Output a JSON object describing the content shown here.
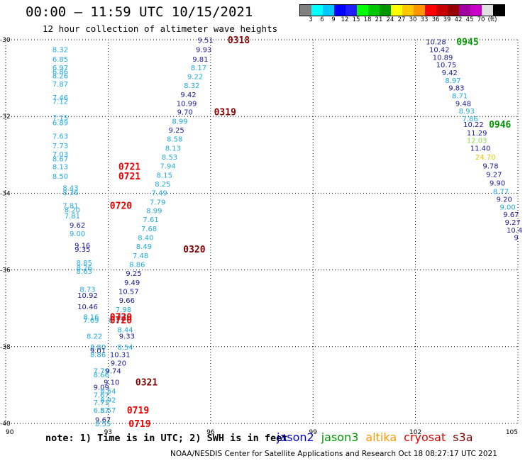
{
  "title": "00:00 — 11:59 UTC 10/15/2021",
  "subtitle": "12 hour collection of altimeter wave heights",
  "colorbar": {
    "colors": [
      "#808080",
      "#00ffff",
      "#00c8ff",
      "#0000ff",
      "#1e1eff",
      "#00ff00",
      "#00c800",
      "#009600",
      "#ffff00",
      "#ffc800",
      "#ff9600",
      "#ff0000",
      "#c80000",
      "#960000",
      "#a000a0",
      "#c800c8",
      "#e0e0e0",
      "#000000"
    ],
    "labels": [
      "3",
      "6",
      "9",
      "12",
      "15",
      "18",
      "21",
      "24",
      "27",
      "30",
      "33",
      "36",
      "39",
      "42",
      "45",
      "70",
      "(ft)"
    ]
  },
  "note": "note: 1) Time is in UTC; 2) SWH is in feet",
  "legend": [
    {
      "name": "jason2",
      "color": "#0000cc"
    },
    {
      "name": "jason3",
      "color": "#009600"
    },
    {
      "name": "altika",
      "color": "#ff9600"
    },
    {
      "name": "cryosat",
      "color": "#e00000"
    },
    {
      "name": "s3a",
      "color": "#800000"
    }
  ],
  "credit": "NOAA/NESDIS Center for Satellite Applications and Research    Oct 18 08:27:17 UTC 2021",
  "chart_data": {
    "type": "scatter",
    "xlim": [
      90,
      105
    ],
    "ylim": [
      -40,
      -30
    ],
    "xticks": [
      "90",
      "93",
      "96",
      "99",
      "102",
      "105"
    ],
    "yticks": [
      "-30",
      "-32",
      "-34",
      "-36",
      "-38",
      "-40"
    ],
    "grid": true,
    "points": [
      {
        "x": 91.6,
        "y": -30.25,
        "v": "8.32",
        "c": "#22aadd"
      },
      {
        "x": 91.6,
        "y": -30.5,
        "v": "6.85",
        "c": "#22aadd"
      },
      {
        "x": 91.6,
        "y": -30.72,
        "v": "6.97",
        "c": "#22aadd"
      },
      {
        "x": 91.6,
        "y": -30.82,
        "v": "6.86",
        "c": "#22aadd"
      },
      {
        "x": 91.6,
        "y": -30.93,
        "v": "8.26",
        "c": "#22aadd"
      },
      {
        "x": 91.6,
        "y": -31.15,
        "v": "7.87",
        "c": "#22aadd"
      },
      {
        "x": 91.6,
        "y": -31.5,
        "v": "7.46",
        "c": "#22aadd"
      },
      {
        "x": 91.6,
        "y": -31.6,
        "v": "7.12",
        "c": "#22aadd"
      },
      {
        "x": 91.6,
        "y": -32.02,
        "v": "7.15",
        "c": "#22aadd"
      },
      {
        "x": 91.6,
        "y": -32.15,
        "v": "6.89",
        "c": "#22aadd"
      },
      {
        "x": 91.6,
        "y": -32.5,
        "v": "7.63",
        "c": "#22aadd"
      },
      {
        "x": 91.6,
        "y": -32.75,
        "v": "7.73",
        "c": "#22aadd"
      },
      {
        "x": 91.6,
        "y": -32.98,
        "v": "7.03",
        "c": "#22aadd"
      },
      {
        "x": 91.6,
        "y": -33.1,
        "v": "8.67",
        "c": "#22aadd"
      },
      {
        "x": 91.6,
        "y": -33.3,
        "v": "8.13",
        "c": "#22aadd"
      },
      {
        "x": 91.6,
        "y": -33.55,
        "v": "8.50",
        "c": "#22aadd"
      },
      {
        "x": 91.9,
        "y": -33.85,
        "v": "8.43",
        "c": "#22aadd"
      },
      {
        "x": 91.9,
        "y": -33.97,
        "v": "8.36",
        "c": "#22aadd"
      },
      {
        "x": 91.9,
        "y": -34.32,
        "v": "7.81",
        "c": "#22aadd"
      },
      {
        "x": 91.95,
        "y": -34.43,
        "v": "8.20",
        "c": "#22aadd"
      },
      {
        "x": 91.95,
        "y": -34.58,
        "v": "7.81",
        "c": "#22aadd"
      },
      {
        "x": 92.1,
        "y": -34.82,
        "v": "9.62",
        "c": "#1a1a9a"
      },
      {
        "x": 92.1,
        "y": -35.05,
        "v": "9.00",
        "c": "#22aadd"
      },
      {
        "x": 92.25,
        "y": -35.35,
        "v": "9.16",
        "c": "#1a1a9a"
      },
      {
        "x": 92.25,
        "y": -35.45,
        "v": "9.35",
        "c": "#1a1a9a"
      },
      {
        "x": 92.3,
        "y": -35.8,
        "v": "8.85",
        "c": "#22aadd"
      },
      {
        "x": 92.3,
        "y": -35.93,
        "v": "8.26",
        "c": "#22aadd"
      },
      {
        "x": 92.3,
        "y": -36.03,
        "v": "8.63",
        "c": "#22aadd"
      },
      {
        "x": 92.4,
        "y": -36.5,
        "v": "8.73",
        "c": "#22aadd"
      },
      {
        "x": 92.4,
        "y": -36.65,
        "v": "10.92",
        "c": "#1a1a9a"
      },
      {
        "x": 92.4,
        "y": -36.95,
        "v": "10.46",
        "c": "#1a1a9a"
      },
      {
        "x": 92.5,
        "y": -37.22,
        "v": "8.16",
        "c": "#22aadd"
      },
      {
        "x": 92.5,
        "y": -37.3,
        "v": "7.69",
        "c": "#22aadd"
      },
      {
        "x": 92.6,
        "y": -37.72,
        "v": "8.22",
        "c": "#22aadd"
      },
      {
        "x": 92.7,
        "y": -38.0,
        "v": "8.80",
        "c": "#22aadd"
      },
      {
        "x": 92.7,
        "y": -38.1,
        "v": "9.01",
        "c": "#1a1a9a"
      },
      {
        "x": 92.7,
        "y": -38.2,
        "v": "8.86",
        "c": "#22aadd"
      },
      {
        "x": 92.8,
        "y": -38.62,
        "v": "7.79",
        "c": "#22aadd"
      },
      {
        "x": 92.8,
        "y": -38.72,
        "v": "8.66",
        "c": "#22aadd"
      },
      {
        "x": 92.8,
        "y": -39.05,
        "v": "9.09",
        "c": "#1a1a9a"
      },
      {
        "x": 92.8,
        "y": -39.25,
        "v": "7.67",
        "c": "#22aadd"
      },
      {
        "x": 92.8,
        "y": -39.45,
        "v": "7.71",
        "c": "#22aadd"
      },
      {
        "x": 92.8,
        "y": -39.65,
        "v": "6.57",
        "c": "#22aadd"
      },
      {
        "x": 92.85,
        "y": -39.9,
        "v": "9.67",
        "c": "#1a1a9a"
      },
      {
        "x": 92.85,
        "y": -40.0,
        "v": "8.55",
        "c": "#22aadd"
      },
      {
        "x": 93.3,
        "y": -37.22,
        "v": "8.21",
        "c": "#22aadd"
      },
      {
        "x": 93.25,
        "y": -37.3,
        "v": "8.21",
        "c": "#22aadd"
      },
      {
        "x": 93.5,
        "y": -37.55,
        "v": "8.44",
        "c": "#22aadd"
      },
      {
        "x": 93.55,
        "y": -37.72,
        "v": "9.33",
        "c": "#1a1a9a"
      },
      {
        "x": 93.5,
        "y": -38.0,
        "v": "8.54",
        "c": "#22aadd"
      },
      {
        "x": 93.35,
        "y": -38.2,
        "v": "10.31",
        "c": "#1a1a9a"
      },
      {
        "x": 93.3,
        "y": -38.42,
        "v": "9.20",
        "c": "#1a1a9a"
      },
      {
        "x": 93.15,
        "y": -38.62,
        "v": "9.74",
        "c": "#1a1a9a"
      },
      {
        "x": 93.1,
        "y": -38.92,
        "v": "9.10",
        "c": "#1a1a9a"
      },
      {
        "x": 93.0,
        "y": -39.15,
        "v": "8.54",
        "c": "#22aadd"
      },
      {
        "x": 93.0,
        "y": -39.38,
        "v": "8.92",
        "c": "#22aadd"
      },
      {
        "x": 93.0,
        "y": -39.65,
        "v": "8.57",
        "c": "#22aadd"
      },
      {
        "x": 95.85,
        "y": -30.0,
        "v": "9.51",
        "c": "#1a1a9a"
      },
      {
        "x": 95.8,
        "y": -30.25,
        "v": "9.93",
        "c": "#1a1a9a"
      },
      {
        "x": 95.7,
        "y": -30.5,
        "v": "9.81",
        "c": "#1a1a9a"
      },
      {
        "x": 95.65,
        "y": -30.72,
        "v": "8.17",
        "c": "#22aadd"
      },
      {
        "x": 95.55,
        "y": -30.95,
        "v": "9.22",
        "c": "#22aadd"
      },
      {
        "x": 95.45,
        "y": -31.18,
        "v": "8.32",
        "c": "#22aadd"
      },
      {
        "x": 95.35,
        "y": -31.42,
        "v": "9.42",
        "c": "#1a1a9a"
      },
      {
        "x": 95.3,
        "y": -31.65,
        "v": "10.99",
        "c": "#1a1a9a"
      },
      {
        "x": 95.25,
        "y": -31.88,
        "v": "9.70",
        "c": "#1a1a9a"
      },
      {
        "x": 95.1,
        "y": -32.12,
        "v": "8.99",
        "c": "#22aadd"
      },
      {
        "x": 95.0,
        "y": -32.35,
        "v": "9.25",
        "c": "#1a1a9a"
      },
      {
        "x": 94.95,
        "y": -32.58,
        "v": "8.58",
        "c": "#22aadd"
      },
      {
        "x": 94.9,
        "y": -32.82,
        "v": "8.13",
        "c": "#22aadd"
      },
      {
        "x": 94.8,
        "y": -33.05,
        "v": "8.53",
        "c": "#22aadd"
      },
      {
        "x": 94.75,
        "y": -33.28,
        "v": "7.94",
        "c": "#22aadd"
      },
      {
        "x": 94.65,
        "y": -33.52,
        "v": "8.15",
        "c": "#22aadd"
      },
      {
        "x": 94.6,
        "y": -33.75,
        "v": "8.25",
        "c": "#22aadd"
      },
      {
        "x": 94.5,
        "y": -33.98,
        "v": "7.49",
        "c": "#22aadd"
      },
      {
        "x": 94.45,
        "y": -34.22,
        "v": "7.79",
        "c": "#22aadd"
      },
      {
        "x": 94.35,
        "y": -34.45,
        "v": "8.99",
        "c": "#22aadd"
      },
      {
        "x": 94.25,
        "y": -34.68,
        "v": "7.61",
        "c": "#22aadd"
      },
      {
        "x": 94.2,
        "y": -34.92,
        "v": "7.68",
        "c": "#22aadd"
      },
      {
        "x": 94.1,
        "y": -35.15,
        "v": "8.40",
        "c": "#22aadd"
      },
      {
        "x": 94.05,
        "y": -35.38,
        "v": "8.49",
        "c": "#22aadd"
      },
      {
        "x": 93.95,
        "y": -35.62,
        "v": "7.48",
        "c": "#22aadd"
      },
      {
        "x": 93.85,
        "y": -35.85,
        "v": "8.86",
        "c": "#22aadd"
      },
      {
        "x": 93.75,
        "y": -36.08,
        "v": "9.25",
        "c": "#1a1a9a"
      },
      {
        "x": 93.7,
        "y": -36.32,
        "v": "9.49",
        "c": "#1a1a9a"
      },
      {
        "x": 93.6,
        "y": -36.55,
        "v": "10.57",
        "c": "#1a1a9a"
      },
      {
        "x": 93.55,
        "y": -36.78,
        "v": "9.66",
        "c": "#1a1a9a"
      },
      {
        "x": 93.45,
        "y": -37.02,
        "v": "7.98",
        "c": "#22aadd"
      },
      {
        "x": 102.6,
        "y": -30.05,
        "v": "10.28",
        "c": "#1a1a9a"
      },
      {
        "x": 102.7,
        "y": -30.25,
        "v": "10.42",
        "c": "#1a1a9a"
      },
      {
        "x": 102.8,
        "y": -30.45,
        "v": "10.89",
        "c": "#1a1a9a"
      },
      {
        "x": 102.9,
        "y": -30.65,
        "v": "10.75",
        "c": "#1a1a9a"
      },
      {
        "x": 103.0,
        "y": -30.85,
        "v": "9.42",
        "c": "#1a1a9a"
      },
      {
        "x": 103.1,
        "y": -31.05,
        "v": "8.97",
        "c": "#22aadd"
      },
      {
        "x": 103.2,
        "y": -31.25,
        "v": "9.83",
        "c": "#1a1a9a"
      },
      {
        "x": 103.3,
        "y": -31.45,
        "v": "8.71",
        "c": "#22aadd"
      },
      {
        "x": 103.4,
        "y": -31.65,
        "v": "9.48",
        "c": "#1a1a9a"
      },
      {
        "x": 103.5,
        "y": -31.85,
        "v": "8.93",
        "c": "#22aadd"
      },
      {
        "x": 103.6,
        "y": -32.05,
        "v": "7.86",
        "c": "#22aadd"
      },
      {
        "x": 103.7,
        "y": -32.2,
        "v": "10.22",
        "c": "#1a1a9a"
      },
      {
        "x": 103.8,
        "y": -32.42,
        "v": "11.29",
        "c": "#1a1a9a"
      },
      {
        "x": 103.8,
        "y": -32.62,
        "v": "12.03",
        "c": "#88dd44"
      },
      {
        "x": 103.9,
        "y": -32.82,
        "v": "11.40",
        "c": "#1a1a9a"
      },
      {
        "x": 104.05,
        "y": -33.05,
        "v": "24.70",
        "c": "#e8c800"
      },
      {
        "x": 104.2,
        "y": -33.28,
        "v": "9.78",
        "c": "#1a1a9a"
      },
      {
        "x": 104.3,
        "y": -33.5,
        "v": "9.27",
        "c": "#1a1a9a"
      },
      {
        "x": 104.4,
        "y": -33.72,
        "v": "9.90",
        "c": "#1a1a9a"
      },
      {
        "x": 104.5,
        "y": -33.95,
        "v": "8.77",
        "c": "#22aadd"
      },
      {
        "x": 104.6,
        "y": -34.15,
        "v": "9.20",
        "c": "#1a1a9a"
      },
      {
        "x": 104.7,
        "y": -34.35,
        "v": "9.00",
        "c": "#22aadd"
      },
      {
        "x": 104.8,
        "y": -34.55,
        "v": "9.67",
        "c": "#1a1a9a"
      },
      {
        "x": 104.85,
        "y": -34.75,
        "v": "9.27",
        "c": "#1a1a9a"
      },
      {
        "x": 104.9,
        "y": -34.95,
        "v": "10.4",
        "c": "#1a1a9a"
      },
      {
        "x": 104.95,
        "y": -35.15,
        "v": "9",
        "c": "#1a1a9a"
      }
    ],
    "time_labels": [
      {
        "x": 96.5,
        "y": -30.0,
        "v": "0318",
        "c": "#800000"
      },
      {
        "x": 96.1,
        "y": -31.88,
        "v": "0319",
        "c": "#800000"
      },
      {
        "x": 93.3,
        "y": -33.3,
        "v": "0721",
        "c": "#ee0000"
      },
      {
        "x": 93.3,
        "y": -33.55,
        "v": "0721",
        "c": "#ee0000"
      },
      {
        "x": 93.05,
        "y": -34.32,
        "v": "0720",
        "c": "#ee0000"
      },
      {
        "x": 95.2,
        "y": -35.45,
        "v": "0320",
        "c": "#800000"
      },
      {
        "x": 93.05,
        "y": -37.22,
        "v": "0720",
        "c": "#ee0000"
      },
      {
        "x": 93.05,
        "y": -37.3,
        "v": "0720",
        "c": "#ee0000"
      },
      {
        "x": 93.8,
        "y": -38.92,
        "v": "0321",
        "c": "#800000"
      },
      {
        "x": 93.55,
        "y": -39.65,
        "v": "0719",
        "c": "#ee0000"
      },
      {
        "x": 93.6,
        "y": -40.0,
        "v": "0719",
        "c": "#ee0000"
      },
      {
        "x": 103.2,
        "y": -30.05,
        "v": "0945",
        "c": "#009600"
      },
      {
        "x": 104.15,
        "y": -32.2,
        "v": "0946",
        "c": "#009600"
      }
    ]
  }
}
